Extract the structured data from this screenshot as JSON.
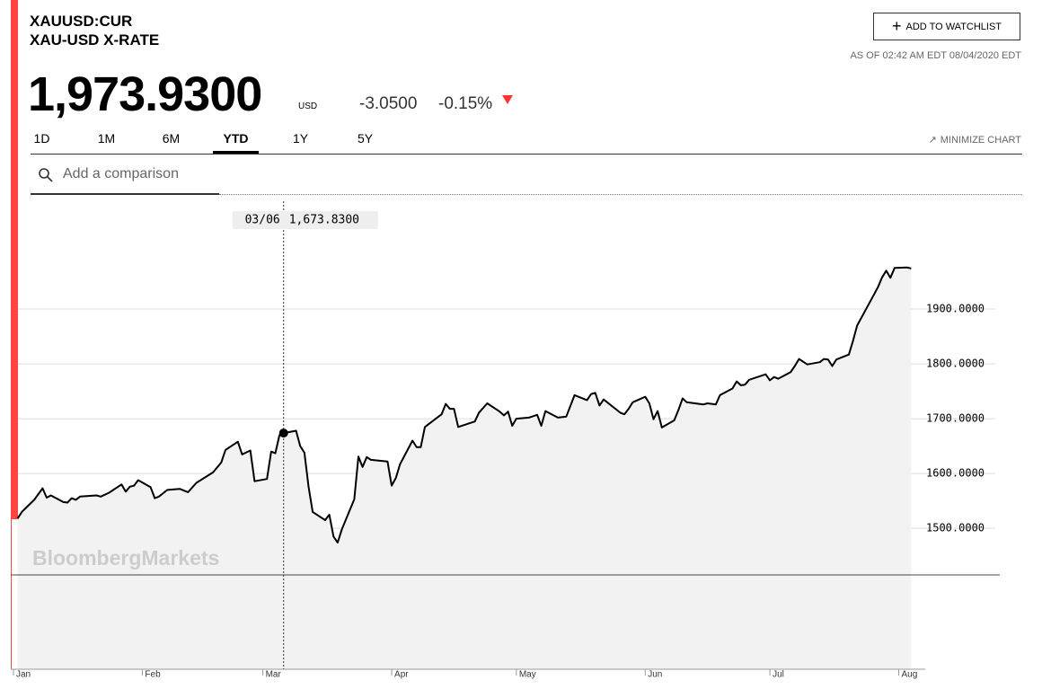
{
  "header": {
    "ticker": "XAUUSD:CUR",
    "name": "XAU-USD X-RATE",
    "price": "1,973.9300",
    "currency": "USD",
    "change": "-3.0500",
    "change_pct": "-0.15%",
    "watchlist_button": "ADD TO WATCHLIST",
    "as_of": "AS OF 02:42 AM EDT 08/04/2020 EDT"
  },
  "tabs": [
    "1D",
    "1M",
    "6M",
    "YTD",
    "1Y",
    "5Y"
  ],
  "active_tab": "YTD",
  "minimize": "MINIMIZE CHART",
  "search_placeholder": "Add a comparison",
  "watermark": "BloombergMarkets",
  "chart_data": {
    "type": "area",
    "color": "#000000",
    "x": [
      "01/02",
      "01/03",
      "01/06",
      "01/08",
      "01/09",
      "01/10",
      "01/13",
      "01/14",
      "01/15",
      "01/16",
      "01/17",
      "01/21",
      "01/22",
      "01/24",
      "01/27",
      "01/28",
      "01/29",
      "01/30",
      "01/31",
      "02/03",
      "02/04",
      "02/05",
      "02/07",
      "02/10",
      "02/12",
      "02/14",
      "02/18",
      "02/20",
      "02/21",
      "02/24",
      "02/25",
      "02/27",
      "02/28",
      "03/02",
      "03/03",
      "03/04",
      "03/05",
      "03/06",
      "03/09",
      "03/10",
      "03/11",
      "03/12",
      "03/13",
      "03/16",
      "03/17",
      "03/18",
      "03/19",
      "03/20",
      "03/23",
      "03/24",
      "03/25",
      "03/26",
      "03/27",
      "03/31",
      "04/01",
      "04/02",
      "04/03",
      "04/06",
      "04/07",
      "04/08",
      "04/09",
      "04/13",
      "04/14",
      "04/15",
      "04/16",
      "04/17",
      "04/21",
      "04/22",
      "04/24",
      "04/27",
      "04/28",
      "04/29",
      "04/30",
      "05/01",
      "05/04",
      "05/06",
      "05/07",
      "05/08",
      "05/11",
      "05/13",
      "05/15",
      "05/18",
      "05/19",
      "05/20",
      "05/21",
      "05/22",
      "05/26",
      "05/27",
      "05/28",
      "05/29",
      "06/01",
      "06/02",
      "06/03",
      "06/04",
      "06/05",
      "06/08",
      "06/09",
      "06/10",
      "06/11",
      "06/15",
      "06/16",
      "06/17",
      "06/18",
      "06/19",
      "06/22",
      "06/23",
      "06/24",
      "06/25",
      "06/26",
      "06/30",
      "07/01",
      "07/02",
      "07/03",
      "07/06",
      "07/07",
      "07/08",
      "07/10",
      "07/13",
      "07/14",
      "07/15",
      "07/16",
      "07/17",
      "07/20",
      "07/21",
      "07/22",
      "07/24",
      "07/27",
      "07/28",
      "07/29",
      "07/30",
      "07/31",
      "08/03",
      "08/04"
    ],
    "values": [
      1518,
      1530,
      1552,
      1573,
      1556,
      1560,
      1548,
      1547,
      1555,
      1552,
      1558,
      1560,
      1558,
      1565,
      1580,
      1567,
      1576,
      1578,
      1588,
      1575,
      1555,
      1558,
      1570,
      1572,
      1566,
      1583,
      1602,
      1620,
      1643,
      1658,
      1635,
      1642,
      1586,
      1590,
      1640,
      1637,
      1670,
      1673.83,
      1678,
      1650,
      1638,
      1576,
      1530,
      1515,
      1525,
      1485,
      1474,
      1498,
      1553,
      1631,
      1612,
      1630,
      1625,
      1622,
      1578,
      1592,
      1617,
      1660,
      1648,
      1648,
      1685,
      1708,
      1727,
      1718,
      1718,
      1685,
      1695,
      1711,
      1728,
      1713,
      1706,
      1713,
      1687,
      1700,
      1702,
      1707,
      1687,
      1714,
      1702,
      1704,
      1743,
      1734,
      1745,
      1747,
      1724,
      1735,
      1711,
      1708,
      1718,
      1730,
      1740,
      1728,
      1699,
      1714,
      1684,
      1697,
      1716,
      1737,
      1730,
      1726,
      1728,
      1727,
      1726,
      1743,
      1755,
      1768,
      1761,
      1762,
      1771,
      1781,
      1770,
      1776,
      1773,
      1785,
      1796,
      1809,
      1799,
      1803,
      1809,
      1808,
      1796,
      1808,
      1817,
      1842,
      1870,
      1898,
      1940,
      1958,
      1970,
      1957,
      1975,
      1976,
      1973.93
    ],
    "xlim": [
      "01/01",
      "08/05"
    ],
    "xticks": [
      {
        "value": "01/01",
        "label": "Jan"
      },
      {
        "value": "02/01",
        "label": "Feb"
      },
      {
        "value": "03/01",
        "label": "Mar"
      },
      {
        "value": "04/01",
        "label": "Apr"
      },
      {
        "value": "05/01",
        "label": "May"
      },
      {
        "value": "06/01",
        "label": "Jun"
      },
      {
        "value": "07/01",
        "label": "Jul"
      },
      {
        "value": "08/01",
        "label": "Aug"
      }
    ],
    "ylim": [
      1243,
      2100
    ],
    "yticks": [
      {
        "value": 1500,
        "label": "1500.0000"
      },
      {
        "value": 1600,
        "label": "1600.0000"
      },
      {
        "value": 1700,
        "label": "1700.0000"
      },
      {
        "value": 1800,
        "label": "1800.0000"
      },
      {
        "value": 1900,
        "label": "1900.0000"
      }
    ],
    "grid": true,
    "crosshair": {
      "x": "03/06",
      "value": {
        "value": 1673.83,
        "label": "1,673.8300"
      }
    }
  }
}
